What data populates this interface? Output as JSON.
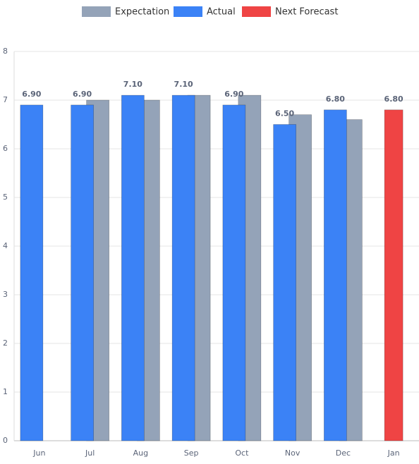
{
  "chart_data": {
    "type": "bar",
    "categories": [
      "Jun",
      "Jul",
      "Aug",
      "Sep",
      "Oct",
      "Nov",
      "Dec",
      "Jan"
    ],
    "series": [
      {
        "name": "Expectation",
        "color": "#94a3b8",
        "values": [
          null,
          7.0,
          7.0,
          7.1,
          7.1,
          6.7,
          6.6,
          null
        ]
      },
      {
        "name": "Actual",
        "color": "#3b82f6",
        "values": [
          6.9,
          6.9,
          7.1,
          7.1,
          6.9,
          6.5,
          6.8,
          null
        ],
        "value_labels": [
          "6.90",
          "6.90",
          "7.10",
          "7.10",
          "6.90",
          "6.50",
          "6.80",
          null
        ]
      },
      {
        "name": "Next Forecast",
        "color": "#ef4444",
        "values": [
          null,
          null,
          null,
          null,
          null,
          null,
          null,
          6.8
        ],
        "value_labels": [
          null,
          null,
          null,
          null,
          null,
          null,
          null,
          "6.80"
        ]
      }
    ],
    "ylim": [
      0,
      8
    ],
    "yticks": [
      0,
      1,
      2,
      3,
      4,
      5,
      6,
      7,
      8
    ],
    "grid": true,
    "legend": "top"
  }
}
